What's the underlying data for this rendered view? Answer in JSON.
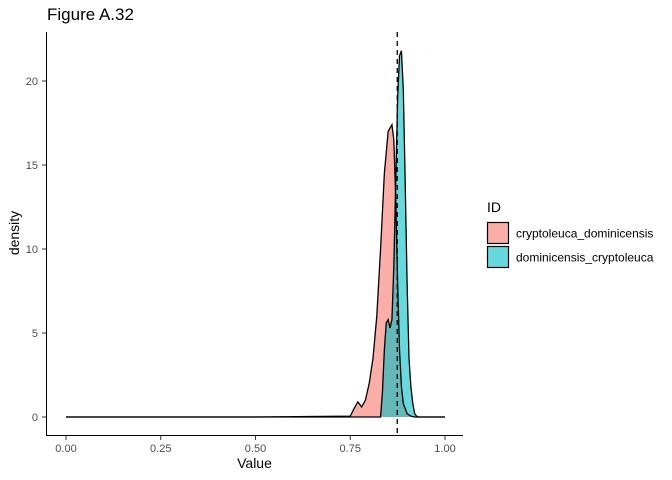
{
  "chart_data": {
    "type": "area",
    "title": "Figure A.32",
    "xlabel": "Value",
    "ylabel": "density",
    "xlim": [
      0,
      1
    ],
    "ylim": [
      0,
      22
    ],
    "x_ticks": [
      "0.00",
      "0.25",
      "0.50",
      "0.75",
      "1.00"
    ],
    "y_ticks": [
      "0",
      "5",
      "10",
      "15",
      "20"
    ],
    "grid": false,
    "legend": {
      "title": "ID",
      "position": "right"
    },
    "reference_line": {
      "x": 0.874,
      "style": "dashed"
    },
    "series": [
      {
        "name": "cryptoleuca_dominicensis",
        "color": "#F8766D",
        "x": [
          0.0,
          0.5,
          0.75,
          0.76,
          0.77,
          0.78,
          0.79,
          0.8,
          0.81,
          0.82,
          0.83,
          0.84,
          0.85,
          0.86,
          0.865,
          0.87,
          0.875,
          0.88,
          0.885,
          0.89,
          0.9,
          0.91,
          0.92,
          1.0
        ],
        "y": [
          0,
          0,
          0.05,
          0.5,
          0.9,
          0.6,
          1.0,
          2.0,
          3.5,
          6.0,
          10.0,
          14.5,
          17.0,
          17.4,
          16.5,
          13.0,
          8.0,
          4.0,
          1.8,
          0.8,
          0.2,
          0.05,
          0,
          0
        ]
      },
      {
        "name": "dominicensis_cryptoleuca",
        "color": "#00BFC4",
        "x": [
          0.0,
          0.5,
          0.83,
          0.835,
          0.84,
          0.845,
          0.85,
          0.855,
          0.86,
          0.865,
          0.87,
          0.875,
          0.88,
          0.885,
          0.89,
          0.895,
          0.9,
          0.905,
          0.91,
          0.915,
          0.92,
          0.925,
          0.93,
          1.0
        ],
        "y": [
          0,
          0,
          0,
          1.5,
          4.0,
          5.6,
          5.8,
          5.3,
          5.8,
          9.0,
          14.0,
          19.0,
          21.5,
          21.8,
          19.5,
          14.0,
          8.0,
          3.5,
          1.8,
          0.8,
          0.2,
          0.05,
          0,
          0
        ]
      }
    ]
  }
}
